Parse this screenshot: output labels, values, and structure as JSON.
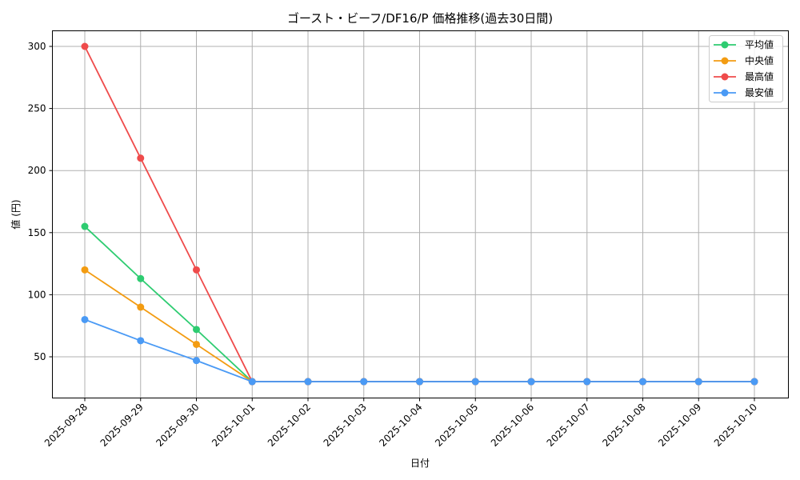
{
  "chart_data": {
    "type": "line",
    "title": "ゴースト・ビーフ/DF16/P 価格推移(過去30日間)",
    "xlabel": "日付",
    "ylabel": "値 (円)",
    "x": [
      "2025-09-28",
      "2025-09-29",
      "2025-09-30",
      "2025-10-01",
      "2025-10-02",
      "2025-10-03",
      "2025-10-04",
      "2025-10-05",
      "2025-10-06",
      "2025-10-07",
      "2025-10-08",
      "2025-10-09",
      "2025-10-10"
    ],
    "yticks": [
      50,
      100,
      150,
      200,
      250,
      300
    ],
    "ylim": [
      15,
      313
    ],
    "grid": true,
    "legend_position": "upper right",
    "series": [
      {
        "name": "平均値",
        "color": "#2ecc71",
        "values": [
          155,
          113,
          72,
          30,
          30,
          30,
          30,
          30,
          30,
          30,
          30,
          30,
          30
        ]
      },
      {
        "name": "中央値",
        "color": "#f39c12",
        "values": [
          120,
          90,
          60,
          30,
          30,
          30,
          30,
          30,
          30,
          30,
          30,
          30,
          30
        ]
      },
      {
        "name": "最高値",
        "color": "#ef4b4b",
        "values": [
          300,
          210,
          120,
          30,
          30,
          30,
          30,
          30,
          30,
          30,
          30,
          30,
          30
        ]
      },
      {
        "name": "最安値",
        "color": "#4a9af5",
        "values": [
          80,
          63,
          47,
          30,
          30,
          30,
          30,
          30,
          30,
          30,
          30,
          30,
          30
        ]
      }
    ]
  }
}
